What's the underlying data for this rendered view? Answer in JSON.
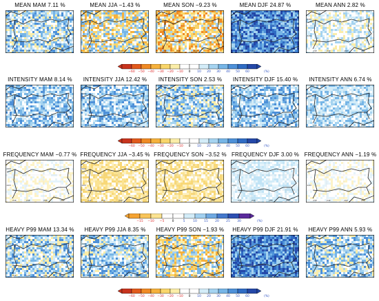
{
  "rows": [
    {
      "row": "mean",
      "panels": [
        {
          "title": "MEAN MAM 7.11 %",
          "pattern": "mixed-blue"
        },
        {
          "title": "MEAN JJA −1.43 %",
          "pattern": "mixed-orange"
        },
        {
          "title": "MEAN SON −9.23 %",
          "pattern": "orange"
        },
        {
          "title": "MEAN DJF 24.87 %",
          "pattern": "strong-blue"
        },
        {
          "title": "MEAN ANN 2.82 %",
          "pattern": "light"
        }
      ],
      "colorbar": "pct"
    },
    {
      "row": "intensity",
      "panels": [
        {
          "title": "INTENSITY MAM 8.14 %",
          "pattern": "blue"
        },
        {
          "title": "INTENSITY JJA 12.42 %",
          "pattern": "blue"
        },
        {
          "title": "INTENSITY SON 2.53 %",
          "pattern": "mixed-blue"
        },
        {
          "title": "INTENSITY DJF 15.40 %",
          "pattern": "blue"
        },
        {
          "title": "INTENSITY ANN 6.74 %",
          "pattern": "light-blue"
        }
      ],
      "colorbar": "pct"
    },
    {
      "row": "frequency",
      "panels": [
        {
          "title": "FREQUENCY MAM −0.77 %",
          "pattern": "pale"
        },
        {
          "title": "FREQUENCY JJA −3.45 %",
          "pattern": "pale-orange"
        },
        {
          "title": "FREQUENCY SON −3.52 %",
          "pattern": "pale-orange"
        },
        {
          "title": "FREQUENCY DJF 3.00 %",
          "pattern": "pale-blue"
        },
        {
          "title": "FREQUENCY ANN −1.19 %",
          "pattern": "pale"
        }
      ],
      "colorbar": "freq"
    },
    {
      "row": "heavy",
      "panels": [
        {
          "title": "HEAVY P99 MAM 13.34 %",
          "pattern": "mixed-blue"
        },
        {
          "title": "HEAVY P99 JJA 8.35 %",
          "pattern": "mixed-blue"
        },
        {
          "title": "HEAVY P99 SON −1.93 %",
          "pattern": "mixed-orange"
        },
        {
          "title": "HEAVY P99 DJF 21.91 %",
          "pattern": "strong-blue"
        },
        {
          "title": "HEAVY P99 ANN 5.93 %",
          "pattern": "mixed-blue"
        }
      ],
      "colorbar": "pct"
    }
  ],
  "colorbars": {
    "pct": {
      "ticks": [
        "−60",
        "−50",
        "−40",
        "−30",
        "−20",
        "−10",
        "0",
        "10",
        "20",
        "30",
        "40",
        "50",
        "60"
      ],
      "unit": "(%)",
      "colors": [
        "#c8341e",
        "#e25a1c",
        "#f08a24",
        "#f6b13c",
        "#f9d56a",
        "#fbeda8",
        "#ffffff",
        "#ffffff",
        "#d3ecf8",
        "#a5d3f0",
        "#76b5e6",
        "#4d90d8",
        "#2f6cc4",
        "#2448a8"
      ]
    },
    "freq": {
      "ticks": [
        "−15",
        "−10",
        "−5",
        "0",
        "5",
        "10",
        "15",
        "20",
        "25",
        "30"
      ],
      "unit": "(%)",
      "colors": [
        "#f5a332",
        "#f8c45a",
        "#fbe392",
        "#ffffff",
        "#ffffff",
        "#d3ecf8",
        "#a2d0f0",
        "#6fa9e2",
        "#4478cc",
        "#2d4fb2",
        "#5a2a9c"
      ]
    }
  },
  "map_axes": {
    "lat_labels": [
      "44N",
      "42N"
    ],
    "lon_labels": [
      "23E",
      "24E",
      "26E",
      "28E"
    ]
  },
  "palette": {
    "strong-blue": [
      "#2f6cc4",
      "#4d90d8",
      "#76b5e6",
      "#a5d3f0",
      "#2448a8"
    ],
    "blue": [
      "#76b5e6",
      "#a5d3f0",
      "#4d90d8",
      "#d3ecf8",
      "#ffffff"
    ],
    "light-blue": [
      "#d3ecf8",
      "#a5d3f0",
      "#ffffff",
      "#76b5e6",
      "#d3ecf8"
    ],
    "mixed-blue": [
      "#a5d3f0",
      "#76b5e6",
      "#d3ecf8",
      "#fbeda8",
      "#4d90d8",
      "#ffffff"
    ],
    "mixed-orange": [
      "#f9d56a",
      "#fbeda8",
      "#a5d3f0",
      "#f6b13c",
      "#76b5e6",
      "#ffffff"
    ],
    "orange": [
      "#f9d56a",
      "#f6b13c",
      "#fbeda8",
      "#f08a24",
      "#a5d3f0",
      "#ffffff"
    ],
    "light": [
      "#ffffff",
      "#d3ecf8",
      "#fbeda8",
      "#a5d3f0",
      "#ffffff"
    ],
    "pale": [
      "#ffffff",
      "#e6f4fb",
      "#fdf3c8",
      "#ffffff"
    ],
    "pale-orange": [
      "#fbe392",
      "#fdf0c0",
      "#ffffff",
      "#f8d878"
    ],
    "pale-blue": [
      "#e6f4fb",
      "#d3ecf8",
      "#ffffff",
      "#c2e4f6"
    ]
  }
}
